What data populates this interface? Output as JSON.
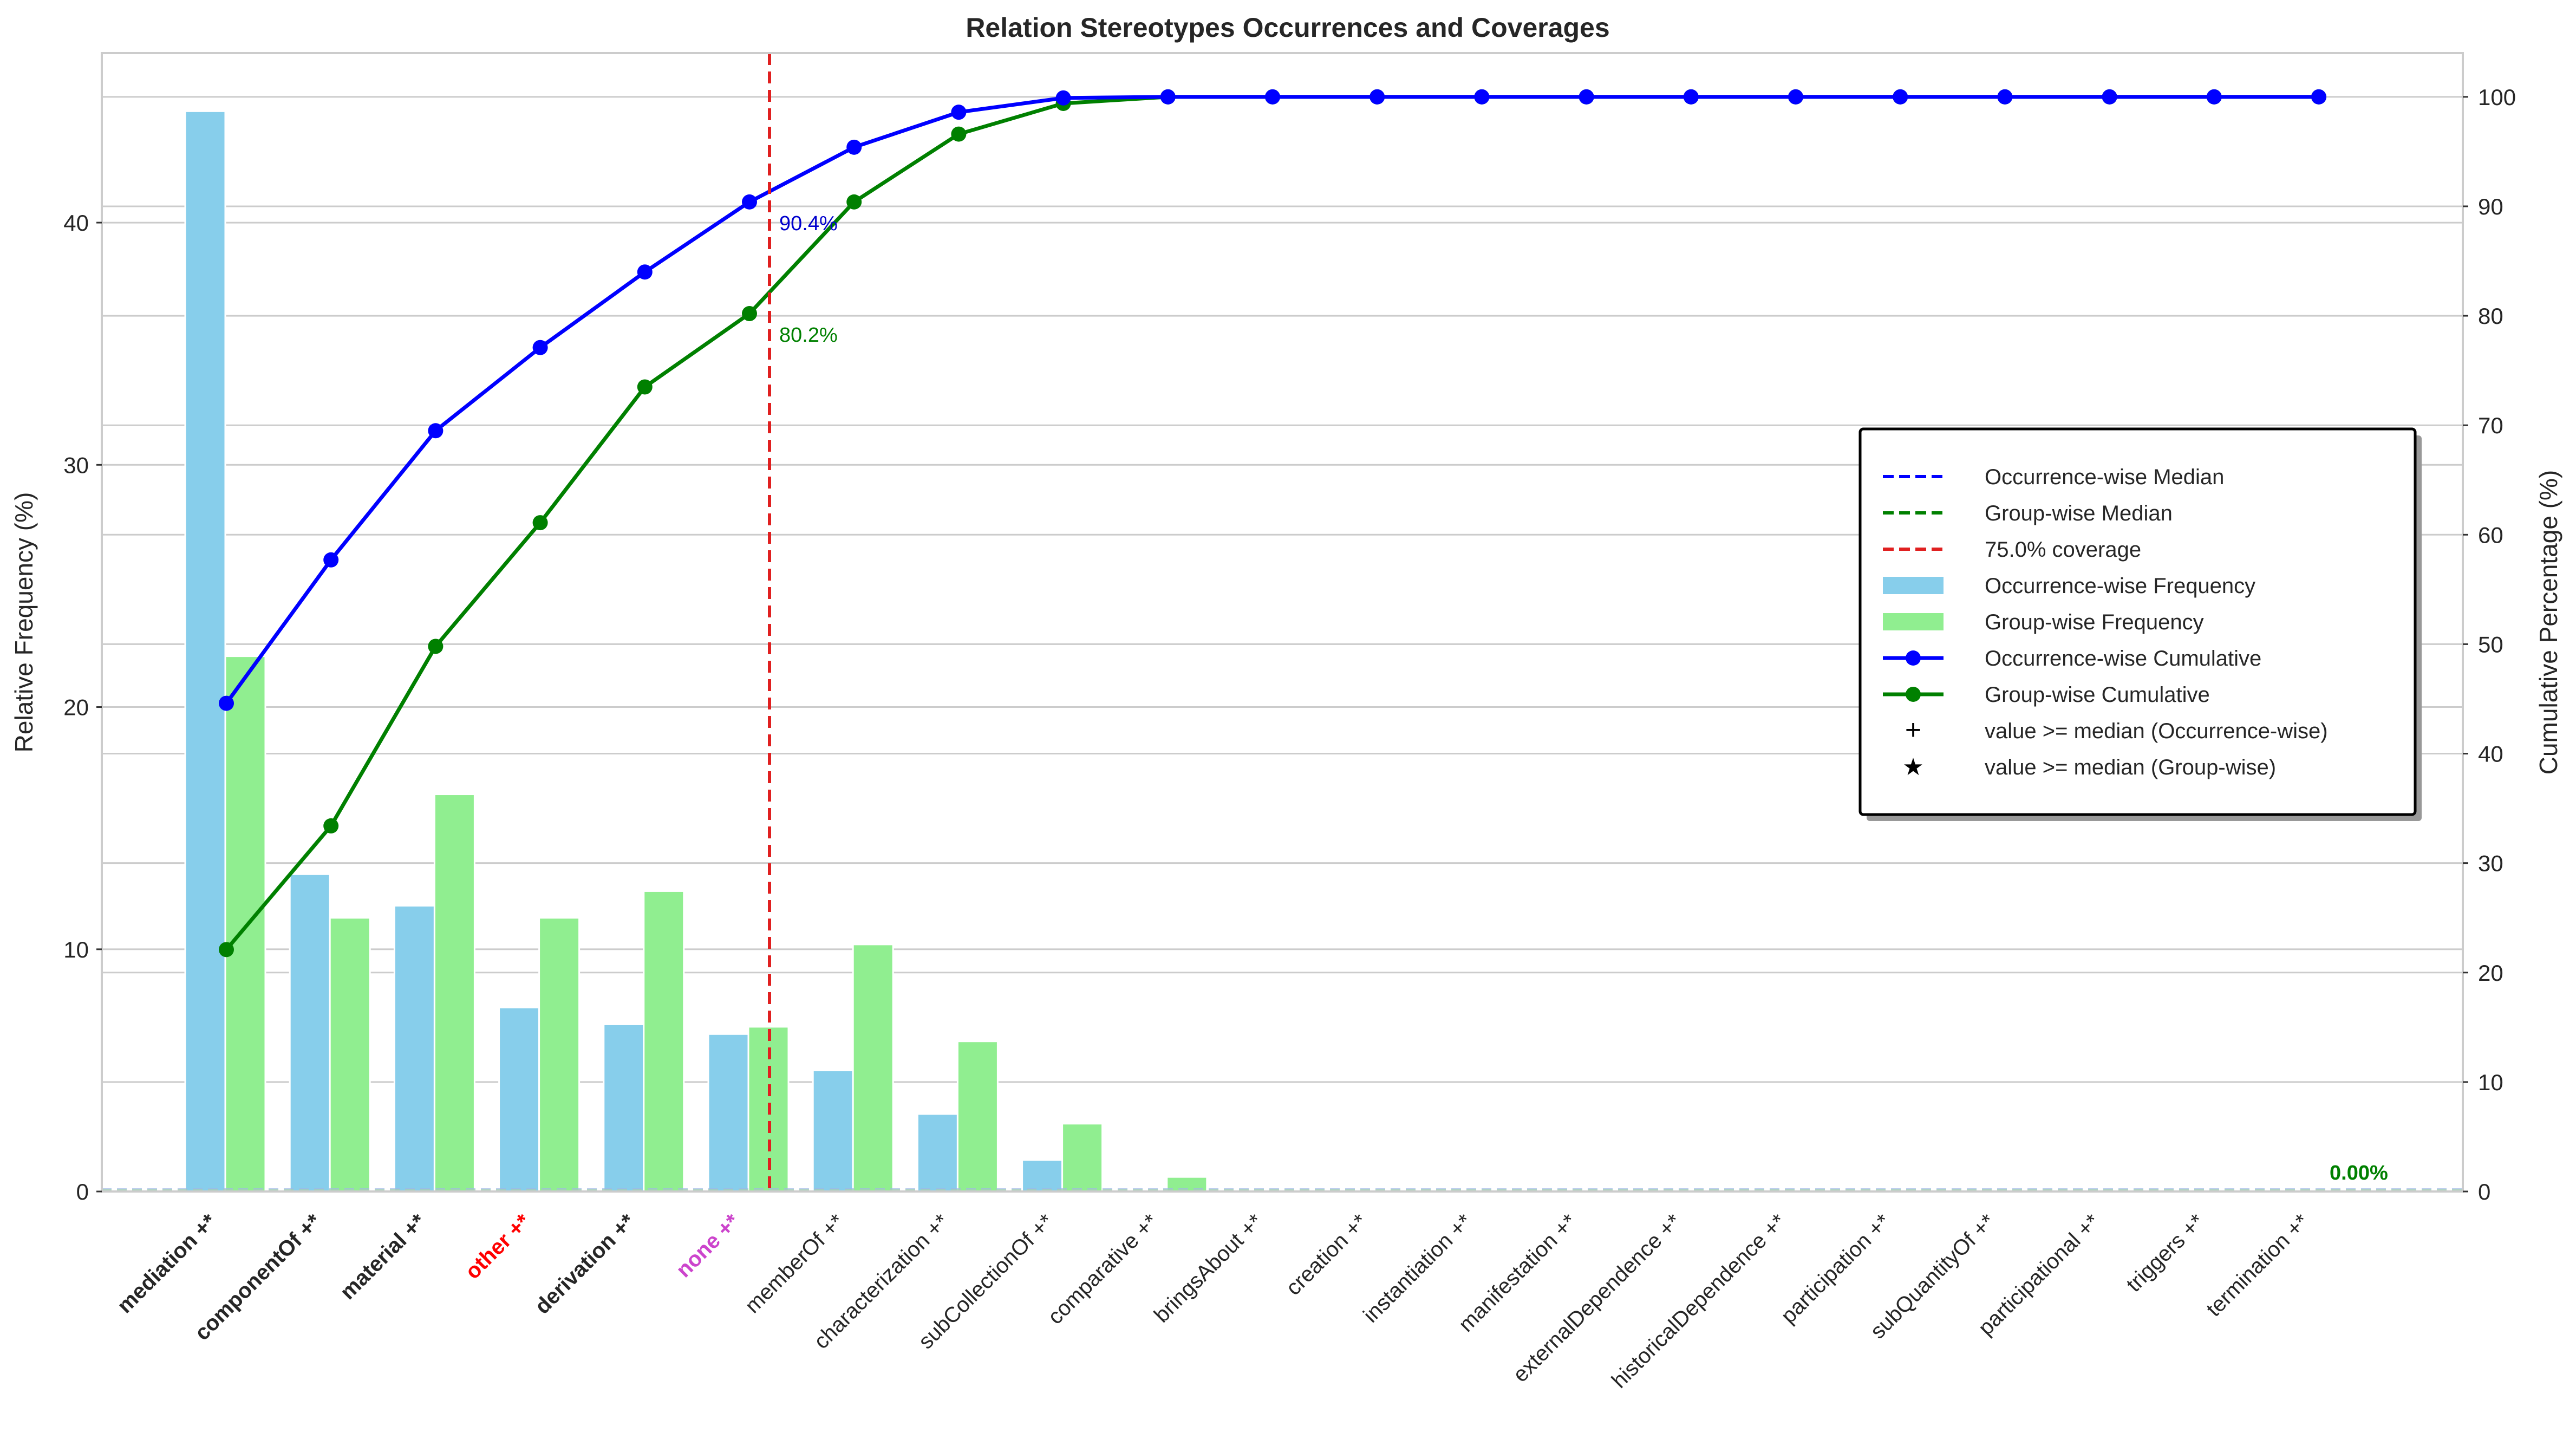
{
  "chart_data": {
    "type": "bar",
    "title": "Relation Stereotypes Occurrences and Coverages",
    "ylabel": "Relative Frequency (%)",
    "y2label": "Cumulative Percentage (%)",
    "ylim": [
      0,
      47
    ],
    "y2lim": [
      0,
      104
    ],
    "yticks": [
      0,
      10,
      20,
      30,
      40
    ],
    "y2ticks": [
      0,
      10,
      20,
      30,
      40,
      50,
      60,
      70,
      80,
      90,
      100
    ],
    "grid": true,
    "categories": [
      "mediation +*",
      "componentOf +*",
      "material +*",
      "other +*",
      "derivation +*",
      "none +*",
      "memberOf +*",
      "characterization +*",
      "subCollectionOf +*",
      "comparative +*",
      "bringsAbout +*",
      "creation +*",
      "instantiation +*",
      "manifestation +*",
      "externalDependence +*",
      "historicalDependence +*",
      "participation +*",
      "subQuantityOf +*",
      "participational +*",
      "triggers +*",
      "termination +*"
    ],
    "category_styles": [
      "bold",
      "bold",
      "bold",
      "bold-red",
      "bold",
      "bold-magenta",
      "normal",
      "normal",
      "normal",
      "normal",
      "normal",
      "normal",
      "normal",
      "normal",
      "normal",
      "normal",
      "normal",
      "normal",
      "normal",
      "normal",
      "normal"
    ],
    "series": [
      {
        "name": "Occurrence-wise Frequency",
        "kind": "bar",
        "color": "#87CEEB",
        "values": [
          44.6,
          13.1,
          11.8,
          7.6,
          6.9,
          6.5,
          5.0,
          3.2,
          1.3,
          0,
          0,
          0,
          0,
          0,
          0,
          0,
          0,
          0,
          0,
          0,
          0
        ]
      },
      {
        "name": "Group-wise Frequency",
        "kind": "bar",
        "color": "#90EE90",
        "values": [
          22.1,
          11.3,
          16.4,
          11.3,
          12.4,
          6.8,
          10.2,
          6.2,
          2.8,
          0.6,
          0,
          0,
          0,
          0,
          0,
          0,
          0,
          0,
          0,
          0,
          0
        ]
      },
      {
        "name": "Occurrence-wise Cumulative",
        "kind": "line",
        "axis": "right",
        "color": "#0000FF",
        "values": [
          44.6,
          57.7,
          69.5,
          77.1,
          84.0,
          90.4,
          95.4,
          98.6,
          99.9,
          100,
          100,
          100,
          100,
          100,
          100,
          100,
          100,
          100,
          100,
          100,
          100
        ]
      },
      {
        "name": "Group-wise Cumulative",
        "kind": "line",
        "axis": "right",
        "color": "#008000",
        "values": [
          22.1,
          33.4,
          49.8,
          61.1,
          73.5,
          80.2,
          90.4,
          96.6,
          99.4,
          100,
          100,
          100,
          100,
          100,
          100,
          100,
          100,
          100,
          100,
          100,
          100
        ]
      }
    ],
    "coverage_line": {
      "index": 5,
      "color": "#E02020",
      "label": "75.0% coverage"
    },
    "medians": [
      {
        "name": "Occurrence-wise Median",
        "color": "#0000FF"
      },
      {
        "name": "Group-wise Median",
        "color": "#008000"
      }
    ],
    "annotations": [
      {
        "text": "90.4%",
        "index": 5,
        "value": 90.4,
        "color": "#0000CD"
      },
      {
        "text": "80.2%",
        "index": 5,
        "value": 80.2,
        "color": "#008000"
      },
      {
        "text": "0.00%",
        "index": 20,
        "value": 0,
        "color": "#008000",
        "bold": true
      }
    ],
    "legend": {
      "position": "center-right",
      "entries": [
        {
          "label": "Occurrence-wise Median",
          "marker": "dash",
          "color": "#0000FF"
        },
        {
          "label": "Group-wise Median",
          "marker": "dash",
          "color": "#008000"
        },
        {
          "label": "75.0% coverage",
          "marker": "dash",
          "color": "#E02020"
        },
        {
          "label": "Occurrence-wise Frequency",
          "marker": "patch",
          "color": "#87CEEB"
        },
        {
          "label": "Group-wise Frequency",
          "marker": "patch",
          "color": "#90EE90"
        },
        {
          "label": "Occurrence-wise Cumulative",
          "marker": "line-dot",
          "color": "#0000FF"
        },
        {
          "label": "Group-wise Cumulative",
          "marker": "line-dot",
          "color": "#008000"
        },
        {
          "label": "value >= median (Occurrence-wise)",
          "marker": "plus",
          "color": "#000000"
        },
        {
          "label": "value >= median (Group-wise)",
          "marker": "star",
          "color": "#000000"
        }
      ]
    }
  }
}
